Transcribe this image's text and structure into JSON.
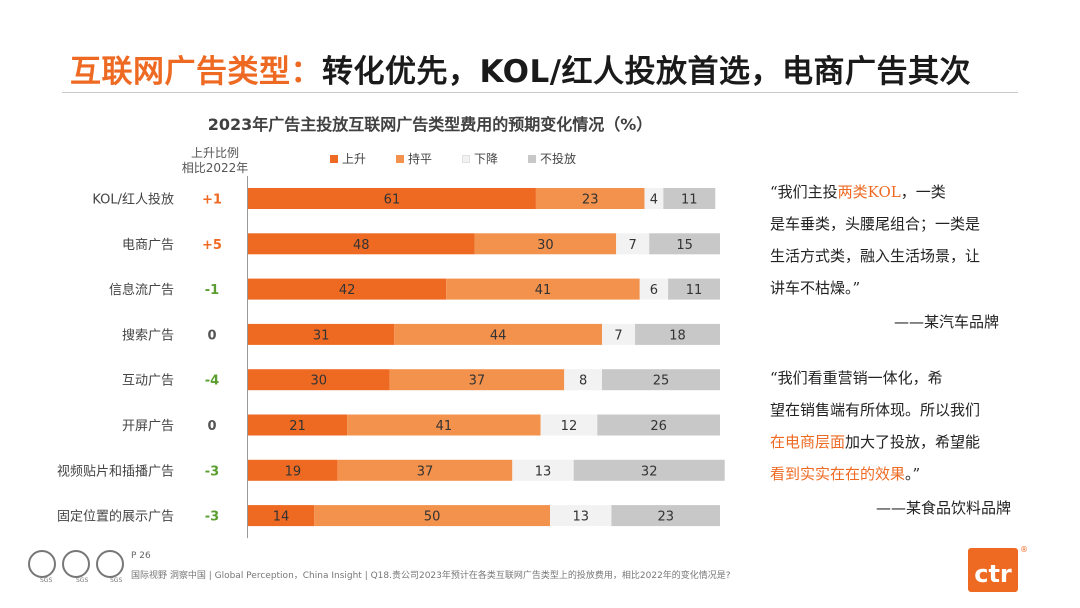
{
  "slide": {
    "title_highlight": "互联网广告类型：",
    "title_rest": "转化优先，KOL/红人投放首选，电商广告其次"
  },
  "chart_data": {
    "type": "bar",
    "orientation": "horizontal-stacked-100",
    "title": "2023年广告主投放互联网广告类型费用的预期变化情况（%）",
    "rise_header": [
      "上升比例",
      "相比2022年"
    ],
    "categories": [
      "KOL/红人投放",
      "电商广告",
      "信息流广告",
      "搜索广告",
      "互动广告",
      "开屏广告",
      "视频贴片和插播广告",
      "固定位置的展示广告"
    ],
    "rise_change": [
      "+1",
      "+5",
      "-1",
      "0",
      "-4",
      "0",
      "-3",
      "-3"
    ],
    "series": [
      {
        "name": "上升",
        "color": "#ee6a23",
        "values": [
          61,
          48,
          42,
          31,
          30,
          21,
          19,
          14
        ]
      },
      {
        "name": "持平",
        "color": "#f3924d",
        "values": [
          23,
          30,
          41,
          44,
          37,
          41,
          37,
          50
        ]
      },
      {
        "name": "下降",
        "color": "#f2f2f2",
        "values": [
          4,
          7,
          6,
          7,
          8,
          12,
          13,
          13
        ]
      },
      {
        "name": "不投放",
        "color": "#c8c8c8",
        "values": [
          11,
          15,
          11,
          18,
          25,
          26,
          32,
          23
        ]
      }
    ],
    "legend_position": "top",
    "xlim": [
      0,
      100
    ]
  },
  "colors": {
    "accent": "#ee6a23",
    "positive": "#ee6a23",
    "negative": "#5a9e2f",
    "neutral": "#555555"
  },
  "quote1": {
    "lines": [
      [
        {
          "t": "“我们主投"
        },
        {
          "t": "两类KOL",
          "em": true
        },
        {
          "t": "，一类"
        }
      ],
      [
        {
          "t": "是车垂类，头腰尾组合；一类是"
        }
      ],
      [
        {
          "t": "生活方式类，融入生活场景，让"
        }
      ],
      [
        {
          "t": "讲车不枯燥。”"
        }
      ]
    ],
    "source": "——某汽车品牌"
  },
  "quote2": {
    "lines": [
      [
        {
          "t": "“我们看重营销一体化，希"
        }
      ],
      [
        {
          "t": "望在销售端有所体现。所以我们"
        }
      ],
      [
        {
          "t": "在电商层面",
          "em": true
        },
        {
          "t": "加大了投放，希望能"
        }
      ],
      [
        {
          "t": "看到实实在在的效果",
          "em": true
        },
        {
          "t": "。”"
        }
      ]
    ],
    "source": "——某食品饮料品牌"
  },
  "footer": {
    "page": "P 26",
    "note": "国际视野  洞察中国 | Global Perception，China Insight  |  Q18.贵公司2023年预计在各类互联网广告类型上的投放费用，相比2022年的变化情况是?",
    "sgs_label": "SGS",
    "logo_text": "ctr",
    "logo_mark": "®"
  }
}
